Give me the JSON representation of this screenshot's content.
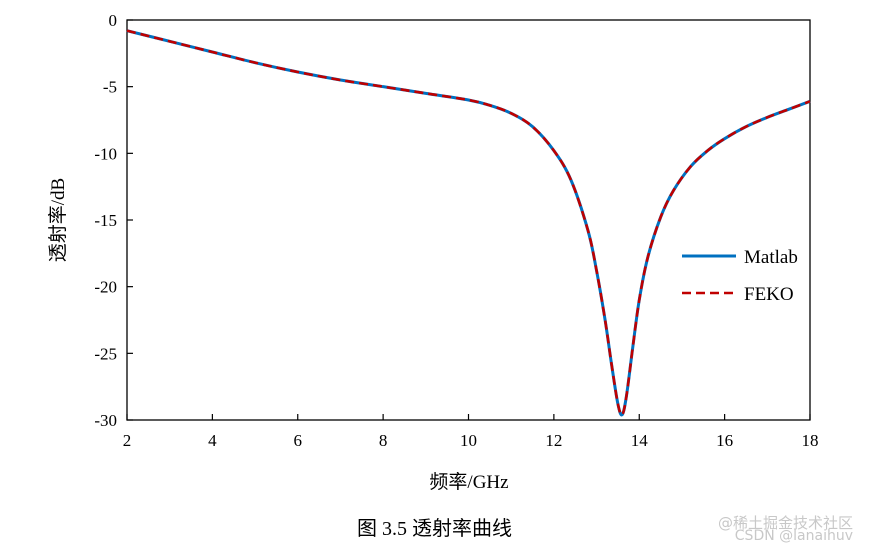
{
  "chart_data": {
    "type": "line",
    "xlabel": "频率/GHz",
    "ylabel": "透射率/dB",
    "xlim": [
      2,
      18
    ],
    "ylim": [
      -30,
      0
    ],
    "xticks": [
      2,
      4,
      6,
      8,
      10,
      12,
      14,
      16,
      18
    ],
    "yticks": [
      0,
      -5,
      -10,
      -15,
      -20,
      -25,
      -30
    ],
    "grid": false,
    "legend_position": "right",
    "series": [
      {
        "name": "Matlab",
        "color": "#0070C0",
        "style": "solid",
        "x": [
          2,
          3,
          4,
          5,
          6,
          7,
          8,
          9,
          10,
          10.5,
          11,
          11.5,
          12,
          12.4,
          12.8,
          13.0,
          13.2,
          13.35,
          13.5,
          13.6,
          13.7,
          13.85,
          14.0,
          14.2,
          14.5,
          14.8,
          15.2,
          15.6,
          16,
          16.5,
          17,
          17.5,
          18
        ],
        "y": [
          -0.8,
          -1.6,
          -2.4,
          -3.2,
          -3.9,
          -4.5,
          -5.0,
          -5.5,
          -6.0,
          -6.4,
          -7.0,
          -8.0,
          -9.8,
          -12.0,
          -15.8,
          -18.8,
          -22.5,
          -25.8,
          -28.8,
          -29.6,
          -28.2,
          -24.5,
          -21.0,
          -17.8,
          -14.8,
          -12.8,
          -11.0,
          -9.8,
          -8.9,
          -8.0,
          -7.3,
          -6.7,
          -6.1
        ]
      },
      {
        "name": "FEKO",
        "color": "#C00000",
        "style": "dashed",
        "x": [
          2,
          3,
          4,
          5,
          6,
          7,
          8,
          9,
          10,
          10.5,
          11,
          11.5,
          12,
          12.4,
          12.8,
          13.0,
          13.2,
          13.35,
          13.5,
          13.6,
          13.7,
          13.85,
          14.0,
          14.2,
          14.5,
          14.8,
          15.2,
          15.6,
          16,
          16.5,
          17,
          17.5,
          18
        ],
        "y": [
          -0.8,
          -1.6,
          -2.4,
          -3.2,
          -3.9,
          -4.5,
          -5.0,
          -5.5,
          -6.0,
          -6.4,
          -7.0,
          -8.0,
          -9.8,
          -12.0,
          -15.8,
          -18.8,
          -22.5,
          -25.8,
          -28.8,
          -29.6,
          -28.2,
          -24.5,
          -21.0,
          -17.8,
          -14.8,
          -12.8,
          -11.0,
          -9.8,
          -8.9,
          -8.0,
          -7.3,
          -6.7,
          -6.1
        ]
      }
    ]
  },
  "caption": "图 3.5  透射率曲线",
  "watermark": {
    "line1": "@稀土掘金技术社区",
    "line2": "CSDN @lanaihuv"
  }
}
